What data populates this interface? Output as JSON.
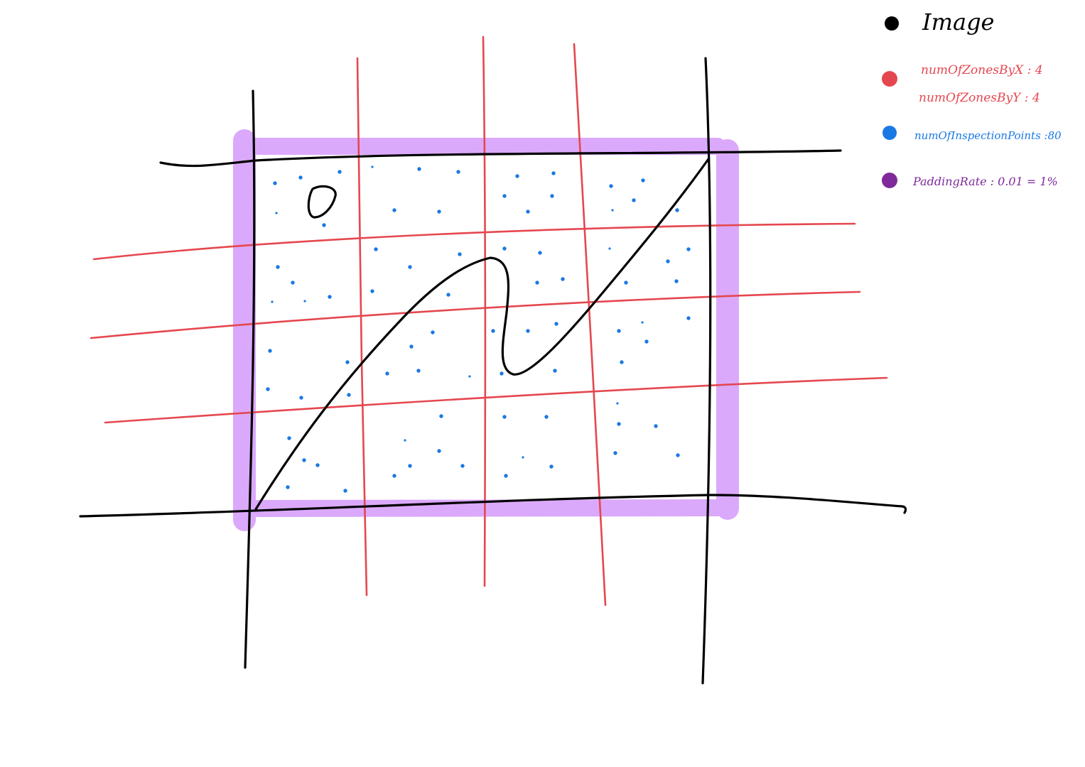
{
  "legend": {
    "image": {
      "label": "Image",
      "color": "#000000"
    },
    "zones": {
      "label_x": "numOfZonesByX : 4",
      "label_y": "numOfZonesByY : 4",
      "color": "#e5474f"
    },
    "points": {
      "label": "numOfInspectionPoints :80",
      "color": "#1a78e5"
    },
    "padding": {
      "label": "PaddingRate : 0.01  =  1%",
      "color": "#7e2a9b"
    }
  },
  "colors": {
    "padding_band": "#dba9fb",
    "grid_line": "#e5474f",
    "point": "#1a78e5",
    "ink": "#000000"
  },
  "config": {
    "numOfZonesByX": 4,
    "numOfZonesByY": 4,
    "numOfInspectionPoints": 80,
    "paddingRate": 0.01
  }
}
